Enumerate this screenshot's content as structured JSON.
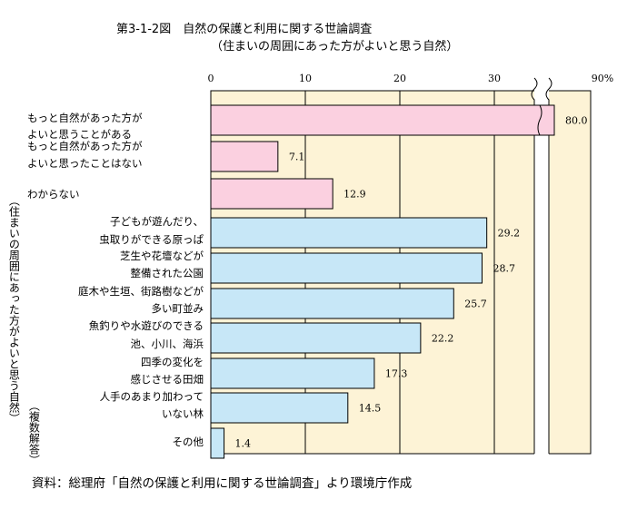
{
  "title": "第3-1-2図　自然の保護と利用に関する世論調査",
  "subtitle": "（住まいの周囲にあった方がよいと思う自然）",
  "source": "資料：総理府「自然の保護と利用に関する世論調査」より環境庁作成",
  "side_label": "（住まいの周囲にあった方がよいと思う自然）",
  "side_label_note": "（複数解答）",
  "colors": {
    "background": "#fdf3d6",
    "pink": "#fbd0e0",
    "blue": "#c7e7f7",
    "grid": "#000000"
  },
  "chart_data": {
    "type": "bar",
    "orientation": "horizontal",
    "x_axis_ticks": [
      "0",
      "10",
      "20",
      "30",
      "90%"
    ],
    "axis_break": "between 30 and 90",
    "xlim": [
      0,
      90
    ],
    "categories": [
      [
        "もっと自然があった方が",
        "よいと思うことがある"
      ],
      [
        "もっと自然があった方が",
        "よいと思ったことはない"
      ],
      [
        "わからない"
      ],
      [
        "子どもが遊んだり、",
        "虫取りができる原っぱ"
      ],
      [
        "芝生や花壇などが",
        "整備された公園"
      ],
      [
        "庭木や生垣、街路樹などが",
        "多い町並み"
      ],
      [
        "魚釣りや水遊びのできる",
        "池、小川、海浜"
      ],
      [
        "四季の変化を",
        "感じさせる田畑"
      ],
      [
        "人手のあまり加わって",
        "いない林"
      ],
      [
        "その他"
      ]
    ],
    "values": [
      80.0,
      7.1,
      12.9,
      29.2,
      28.7,
      25.7,
      22.2,
      17.3,
      14.5,
      1.4
    ],
    "value_labels": [
      "80.0",
      "7.1",
      "12.9",
      "29.2",
      "28.7",
      "25.7",
      "22.2",
      "17.3",
      "14.5",
      "1.4"
    ],
    "bar_groups": [
      "pink",
      "pink",
      "pink",
      "blue",
      "blue",
      "blue",
      "blue",
      "blue",
      "blue",
      "blue"
    ],
    "grid": true
  }
}
